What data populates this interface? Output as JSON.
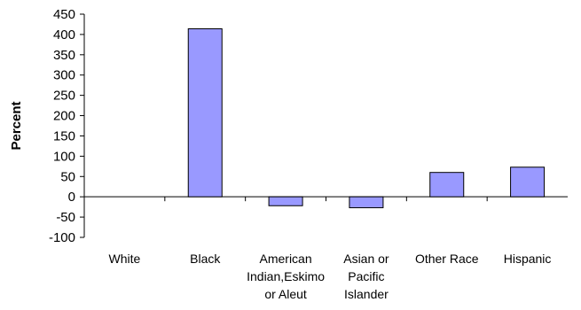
{
  "chart_data": {
    "type": "bar",
    "title": "",
    "xlabel": "",
    "ylabel": "Percent",
    "categories": [
      [
        "White"
      ],
      [
        "Black"
      ],
      [
        "American",
        "Indian,Eskimo",
        "or Aleut"
      ],
      [
        "Asian or",
        "Pacific",
        "Islander"
      ],
      [
        "Other Race"
      ],
      [
        "Hispanic"
      ]
    ],
    "values": [
      0,
      414,
      -22,
      -27,
      60,
      73
    ],
    "ylim": [
      -100,
      450
    ],
    "yticks": [
      "450",
      "400",
      "350",
      "300",
      "250",
      "200",
      "150",
      "100",
      "50",
      "0",
      "-50",
      "-100"
    ],
    "grid": false,
    "legend": "none",
    "bar_color": "#9999ff",
    "bar_stroke": "#000000"
  }
}
